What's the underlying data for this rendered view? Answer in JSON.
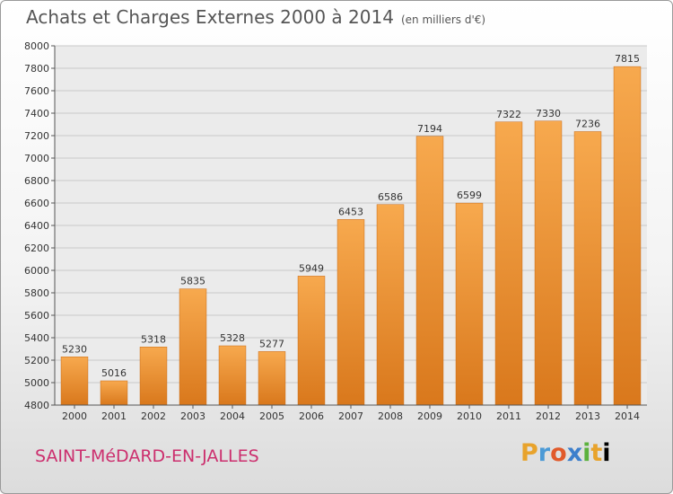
{
  "title": "Achats et Charges Externes 2000 à 2014",
  "subtitle": "(en milliers d'€)",
  "town": "SAINT-MéDARD-EN-JALLES",
  "logo": [
    "P",
    "r",
    "o",
    "x",
    "i",
    "t",
    "i"
  ],
  "colors": {
    "bar_light": "#f7a94e",
    "bar_dark": "#d9781c",
    "town": "#cc2f6e"
  },
  "chart_data": {
    "type": "bar",
    "title": "Achats et Charges Externes 2000 à 2014",
    "subtitle": "(en milliers d'€)",
    "categories": [
      "2000",
      "2001",
      "2002",
      "2003",
      "2004",
      "2005",
      "2006",
      "2007",
      "2008",
      "2009",
      "2010",
      "2011",
      "2012",
      "2013",
      "2014"
    ],
    "values": [
      5230,
      5016,
      5318,
      5835,
      5328,
      5277,
      5949,
      6453,
      6586,
      7194,
      6599,
      7322,
      7330,
      7236,
      7815
    ],
    "ylim": [
      4800,
      8000
    ],
    "yticks": [
      4800,
      5000,
      5200,
      5400,
      5600,
      5800,
      6000,
      6200,
      6400,
      6600,
      6800,
      7000,
      7200,
      7400,
      7600,
      7800,
      8000
    ],
    "grid": true,
    "legend": "none"
  }
}
